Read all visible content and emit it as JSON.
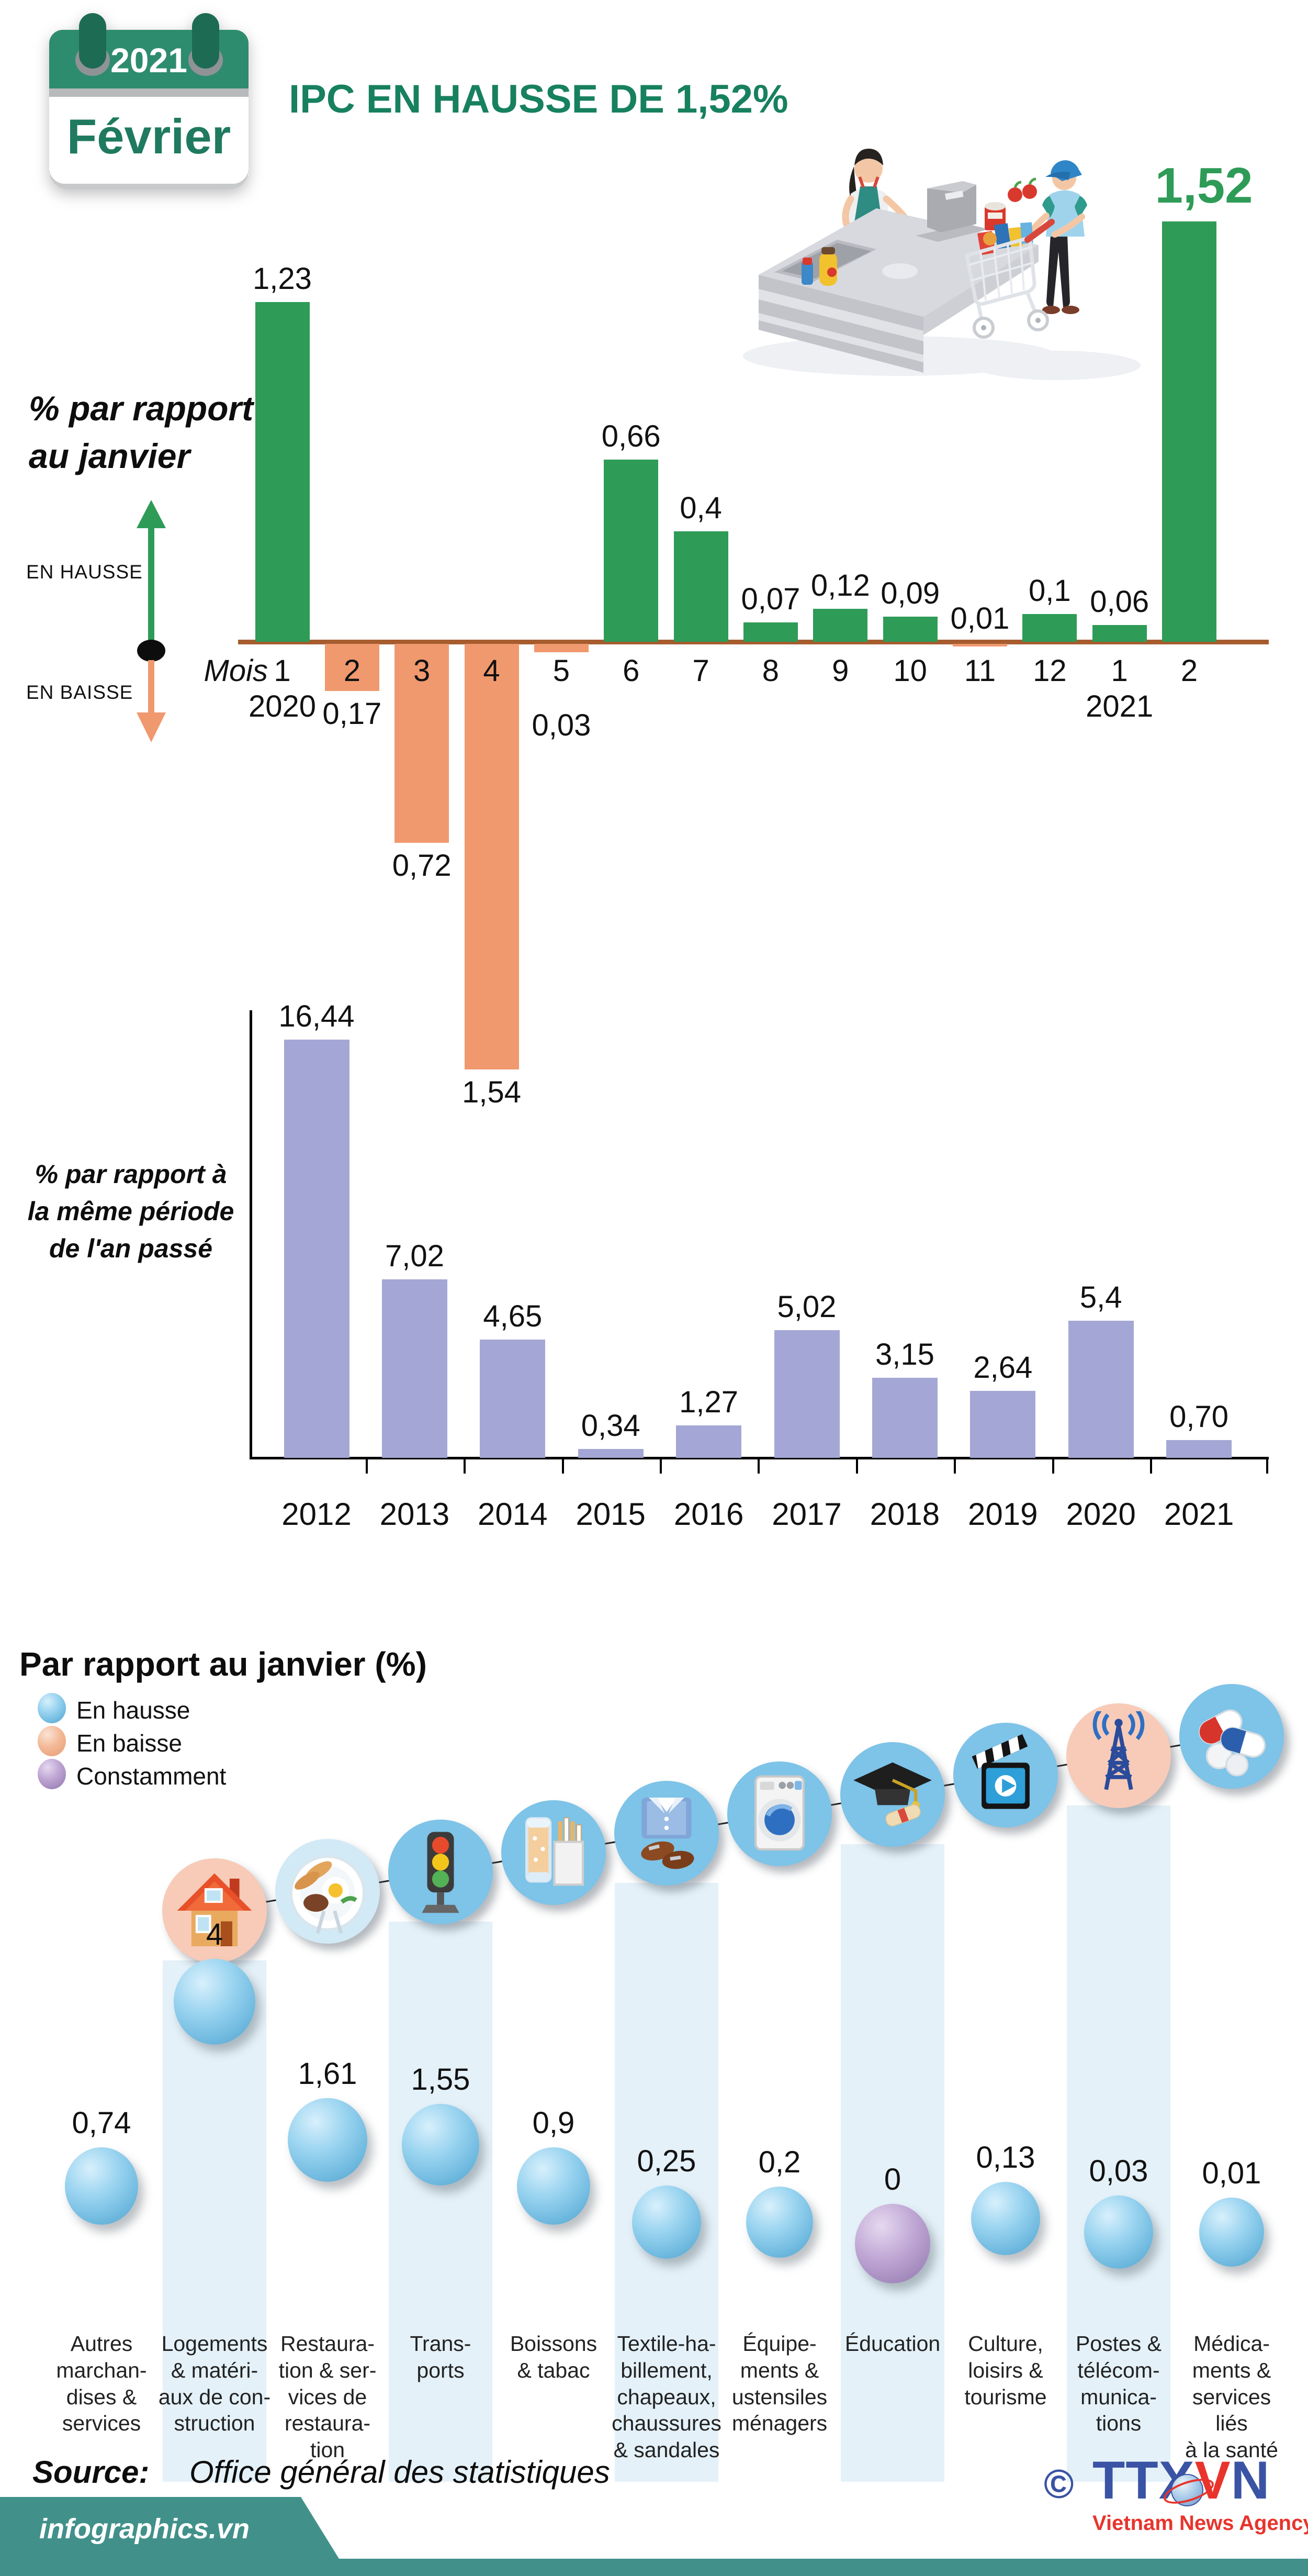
{
  "header": {
    "calendar": {
      "year": "2021",
      "month": "Février"
    },
    "title": "IPC EN HAUSSE DE 1,52%",
    "illustration": "supermarket-checkout"
  },
  "colors": {
    "green": "#2E9B57",
    "title_green": "#17805F",
    "salmon": "#F0996E",
    "purple_bar": "#A4A7D5",
    "axis_brown": "#A65C2E",
    "band_blue": "#E4F1F8",
    "icon_blue": "#7EC3E8",
    "icon_pink": "#F7CBB8",
    "icon_pale": "#D2E9F6",
    "teal": "#41918A",
    "logo_blue": "#3A53A4",
    "logo_red": "#E8342C"
  },
  "chart_data": [
    {
      "id": "monthly",
      "type": "bar",
      "title": "% par rapport au janvier",
      "ylabel_lines": [
        "% par rapport",
        "au janvier"
      ],
      "axis_caption": "Mois",
      "legend": {
        "up": "EN HAUSSE",
        "down": "EN BAISSE"
      },
      "categories": [
        "1",
        "2",
        "3",
        "4",
        "5",
        "6",
        "7",
        "8",
        "9",
        "10",
        "11",
        "12",
        "1",
        "2"
      ],
      "category_year_marks": [
        {
          "index": 0,
          "label": "2020"
        },
        {
          "index": 12,
          "label": "2021"
        }
      ],
      "values": [
        1.23,
        -0.17,
        -0.72,
        -1.54,
        -0.03,
        0.66,
        0.4,
        0.07,
        0.12,
        0.09,
        -0.01,
        0.1,
        0.06,
        1.52
      ],
      "value_labels": [
        "1,23",
        "0,17",
        "0,72",
        "1,54",
        "0,03",
        "0,66",
        "0,4",
        "0,07",
        "0,12",
        "0,09",
        "0,01",
        "0,1",
        "0,06",
        "1,52"
      ],
      "label_placement": [
        "above",
        "below",
        "below",
        "below",
        "below-far",
        "above",
        "above",
        "above",
        "above",
        "above",
        "above-axis",
        "above",
        "above",
        "big"
      ],
      "bar_colors": [
        "green",
        "salmon",
        "salmon",
        "salmon",
        "salmon",
        "green",
        "green",
        "green",
        "green",
        "green",
        "salmon",
        "green",
        "green",
        "green"
      ],
      "ylim": [
        -1.8,
        1.8
      ],
      "grid": false,
      "legend_position": "left"
    },
    {
      "id": "yearly",
      "type": "bar",
      "title": "% par rapport à la même période de l'an passé",
      "ylabel_lines": [
        "% par rapport à",
        "la même période",
        "de l'an passé"
      ],
      "categories": [
        "2012",
        "2013",
        "2014",
        "2015",
        "2016",
        "2017",
        "2018",
        "2019",
        "2020",
        "2021"
      ],
      "values": [
        16.44,
        7.02,
        4.65,
        0.34,
        1.27,
        5.02,
        3.15,
        2.64,
        5.4,
        0.7
      ],
      "value_labels": [
        "16,44",
        "7,02",
        "4,65",
        "0,34",
        "1,27",
        "5,02",
        "3,15",
        "2,64",
        "5,4",
        "0,70"
      ],
      "ylim": [
        0,
        17
      ],
      "grid": false
    },
    {
      "id": "categories",
      "type": "bubble",
      "title": "Par rapport au janvier (%)",
      "legend": [
        {
          "label": "En hausse",
          "state": "up"
        },
        {
          "label": "En baisse",
          "state": "down"
        },
        {
          "label": "Constamment",
          "state": "flat"
        }
      ],
      "items": [
        {
          "name": "autres-marchandises",
          "label": "Autres\nmarchan-\ndises &\nservices",
          "value": 0.74,
          "value_label": "0,74",
          "state": "up",
          "icon": null,
          "icon_bg": null,
          "band": false
        },
        {
          "name": "logements",
          "label": "Logements\n& matéri-\naux de con-\nstruction",
          "value": 4,
          "value_label": "4",
          "state": "up",
          "icon": "house-icon",
          "icon_bg": "pink",
          "band": true
        },
        {
          "name": "restauration",
          "label": "Restaura-\ntion & ser-\nvices de\nrestaura-\ntion",
          "value": 1.61,
          "value_label": "1,61",
          "state": "up",
          "icon": "meal-icon",
          "icon_bg": "pale",
          "band": false
        },
        {
          "name": "transports",
          "label": "Trans-\nports",
          "value": 1.55,
          "value_label": "1,55",
          "state": "up",
          "icon": "traffic-light-icon",
          "icon_bg": "blue",
          "band": true
        },
        {
          "name": "boissons-tabac",
          "label": "Boissons\n& tabac",
          "value": 0.9,
          "value_label": "0,9",
          "state": "up",
          "icon": "drinks-tobacco-icon",
          "icon_bg": "blue",
          "band": false
        },
        {
          "name": "textile-habillement",
          "label": "Textile-ha-\nbillement,\nchapeaux,\nchaussures\n& sandales",
          "value": 0.25,
          "value_label": "0,25",
          "state": "up",
          "icon": "clothing-icon",
          "icon_bg": "blue",
          "band": true
        },
        {
          "name": "equipements-menagers",
          "label": "Équipe-\nments &\nustensiles\nménagers",
          "value": 0.2,
          "value_label": "0,2",
          "state": "up",
          "icon": "washing-machine-icon",
          "icon_bg": "blue",
          "band": false
        },
        {
          "name": "education",
          "label": "Éducation",
          "value": 0,
          "value_label": "0",
          "state": "flat",
          "icon": "graduation-icon",
          "icon_bg": "blue",
          "band": true
        },
        {
          "name": "culture-loisirs",
          "label": "Culture,\nloisirs &\ntourisme",
          "value": 0.13,
          "value_label": "0,13",
          "state": "up",
          "icon": "cinema-icon",
          "icon_bg": "blue",
          "band": false
        },
        {
          "name": "postes-telecom",
          "label": "Postes &\ntélécom-\nmunica-\ntions",
          "value": 0.03,
          "value_label": "0,03",
          "state": "up",
          "icon": "antenna-icon",
          "icon_bg": "pink",
          "band": true
        },
        {
          "name": "medicaments-sante",
          "label": "Médica-\nments &\nservices liés\nà la santé",
          "value": 0.01,
          "value_label": "0,01",
          "state": "up",
          "icon": "medicine-icon",
          "icon_bg": "blue",
          "band": false
        }
      ]
    }
  ],
  "footer": {
    "source_label": "Source:",
    "source_value": "Office général des statistiques",
    "watermark": "infographics.vn",
    "copyright": "©",
    "agency_abbr": "TTXVN",
    "agency_name": "Vietnam News Agency"
  }
}
